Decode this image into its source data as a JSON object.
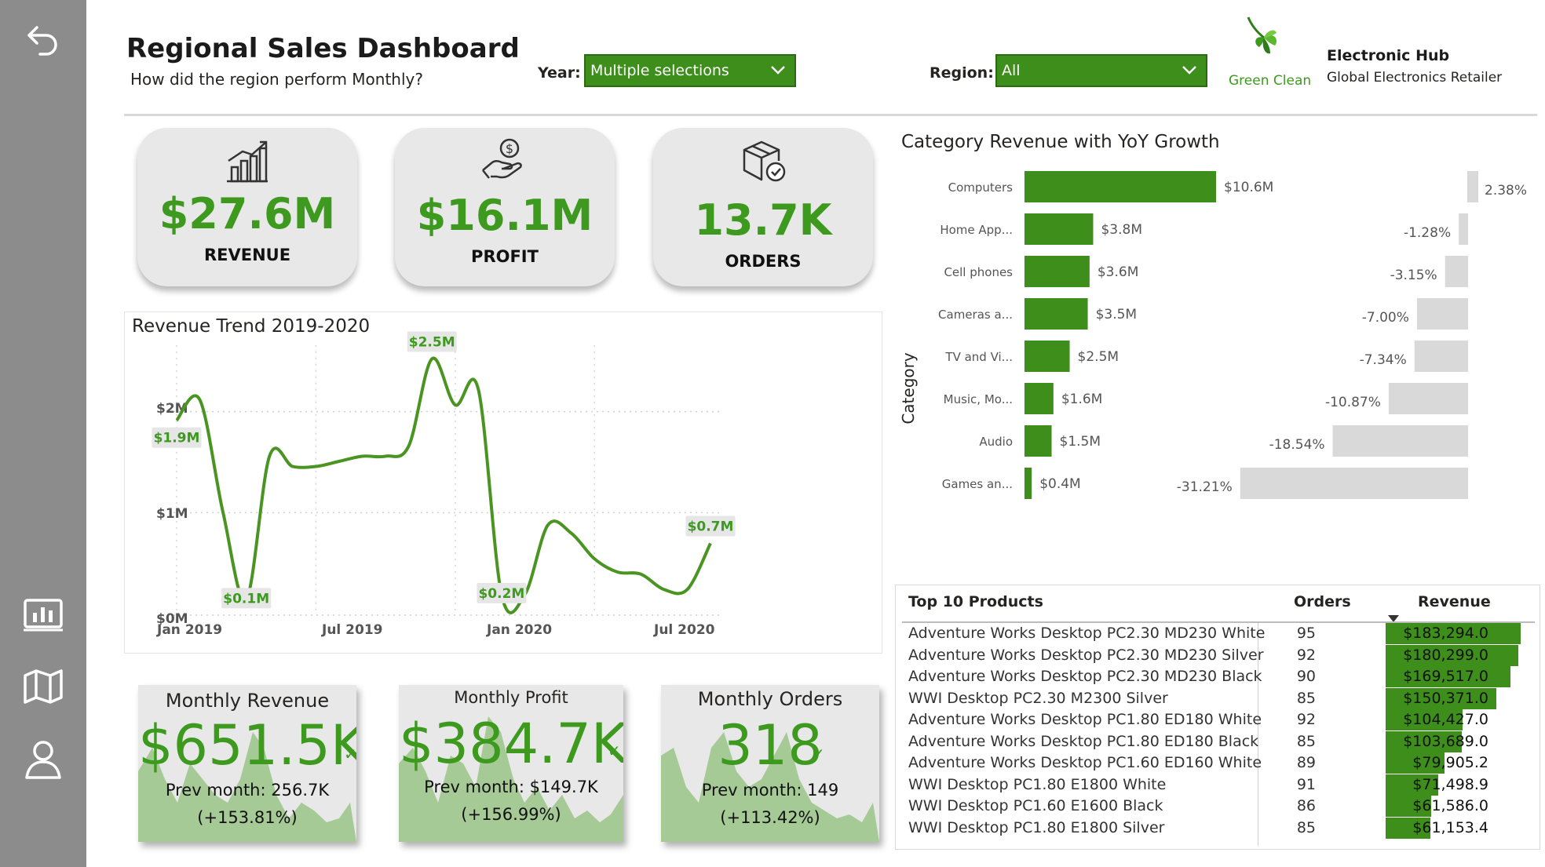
{
  "header": {
    "title": "Regional Sales Dashboard",
    "subtitle": "How did the region perform Monthly?",
    "year_label": "Year:",
    "year_value": "Multiple selections",
    "region_label": "Region:",
    "region_value": "All",
    "logo_text": "Green Clean",
    "brand_name": "Electronic Hub",
    "brand_tagline": "Global Electronics Retailer"
  },
  "sidebar": {
    "icons": [
      "back-arrow-icon",
      "report-icon",
      "map-icon",
      "user-icon"
    ]
  },
  "kpis": [
    {
      "value": "$27.6M",
      "label": "REVENUE",
      "icon": "growth-chart-icon"
    },
    {
      "value": "$16.1M",
      "label": "PROFIT",
      "icon": "hand-coin-icon"
    },
    {
      "value": "13.7K",
      "label": "ORDERS",
      "icon": "package-icon"
    }
  ],
  "trend": {
    "title": "Revenue Trend 2019-2020",
    "y_ticks": [
      "$0M",
      "$1M",
      "$2M"
    ],
    "x_ticks": [
      "Jan 2019",
      "Jul 2019",
      "Jan 2020",
      "Jul 2020"
    ],
    "labels": [
      "$1.9M",
      "$0.1M",
      "$2.5M",
      "$0.2M",
      "$0.7M"
    ]
  },
  "chart_data": [
    {
      "type": "line",
      "title": "Revenue Trend 2019-2020",
      "xlabel": "",
      "ylabel": "",
      "ylim": [
        0,
        2.25
      ],
      "x": [
        "2019-01",
        "2019-02",
        "2019-03",
        "2019-04",
        "2019-05",
        "2019-06",
        "2019-07",
        "2019-08",
        "2019-09",
        "2019-10",
        "2019-11",
        "2019-12",
        "2020-01",
        "2020-02",
        "2020-03",
        "2020-04",
        "2020-05",
        "2020-06",
        "2020-07",
        "2020-08",
        "2020-09",
        "2020-10",
        "2020-11",
        "2020-12"
      ],
      "values": [
        1.9,
        2.1,
        1.0,
        0.15,
        1.55,
        1.45,
        1.45,
        1.5,
        1.55,
        1.55,
        1.65,
        2.5,
        2.05,
        2.2,
        0.2,
        0.2,
        0.88,
        0.8,
        0.55,
        0.42,
        0.4,
        0.25,
        0.25,
        0.7
      ],
      "grid": true
    },
    {
      "type": "bar",
      "title": "Category Revenue with YoY Growth",
      "ylabel": "Category",
      "categories": [
        "Computers",
        "Home App...",
        "Cell phones",
        "Cameras a...",
        "TV and Vi...",
        "Music, Mo...",
        "Audio",
        "Games an..."
      ],
      "values": [
        10.6,
        3.8,
        3.6,
        3.5,
        2.5,
        1.6,
        1.5,
        0.4
      ],
      "value_labels": [
        "$10.6M",
        "$3.8M",
        "$3.6M",
        "$3.5M",
        "$2.5M",
        "$1.6M",
        "$1.5M",
        "$0.4M"
      ],
      "growth": [
        2.38,
        -1.28,
        -3.15,
        -7.0,
        -7.34,
        -10.87,
        -18.54,
        -31.21
      ],
      "growth_labels": [
        "2.38%",
        "-1.28%",
        "-3.15%",
        "-7.00%",
        "-7.34%",
        "-10.87%",
        "-18.54%",
        "-31.21%"
      ]
    }
  ],
  "monthly": [
    {
      "title": "Monthly Revenue",
      "value": "$651.5K",
      "prev": "Prev month: 256.7K",
      "change": "(+153.81%)"
    },
    {
      "title": "Monthly Profit",
      "value": "$384.7K",
      "prev": "Prev month: $149.7K",
      "change": "(+156.99%)"
    },
    {
      "title": "Monthly Orders",
      "value": "318",
      "prev": "Prev month: 149",
      "change": "(+113.42%)"
    }
  ],
  "table": {
    "title": "Top 10 Products",
    "col_orders": "Orders",
    "col_revenue": "Revenue",
    "rows": [
      {
        "name": "Adventure Works Desktop PC2.30 MD230 White",
        "orders": "95",
        "revenue": "$183,294.0",
        "rev": 183294.0
      },
      {
        "name": "Adventure Works Desktop PC2.30 MD230 Silver",
        "orders": "92",
        "revenue": "$180,299.0",
        "rev": 180299.0
      },
      {
        "name": "Adventure Works Desktop PC2.30 MD230 Black",
        "orders": "90",
        "revenue": "$169,517.0",
        "rev": 169517.0
      },
      {
        "name": "WWI Desktop PC2.30 M2300 Silver",
        "orders": "85",
        "revenue": "$150,371.0",
        "rev": 150371.0
      },
      {
        "name": "Adventure Works Desktop PC1.80 ED180 White",
        "orders": "92",
        "revenue": "$104,427.0",
        "rev": 104427.0
      },
      {
        "name": "Adventure Works Desktop PC1.80 ED180 Black",
        "orders": "85",
        "revenue": "$103,689.0",
        "rev": 103689.0
      },
      {
        "name": "Adventure Works Desktop PC1.60 ED160 White",
        "orders": "89",
        "revenue": "$79,905.2",
        "rev": 79905.2
      },
      {
        "name": "WWI Desktop PC1.80 E1800 White",
        "orders": "91",
        "revenue": "$71,498.9",
        "rev": 71498.9
      },
      {
        "name": "WWI Desktop PC1.60 E1600 Black",
        "orders": "86",
        "revenue": "$61,586.0",
        "rev": 61586.0
      },
      {
        "name": "WWI Desktop PC1.80 E1800 Silver",
        "orders": "85",
        "revenue": "$61,153.4",
        "rev": 61153.4
      }
    ]
  },
  "colors": {
    "accent": "#3e8e1c",
    "accent_text": "#3e9a1f",
    "growth_bar": "#d9d9d9",
    "sidebar": "#8c8c8c"
  }
}
